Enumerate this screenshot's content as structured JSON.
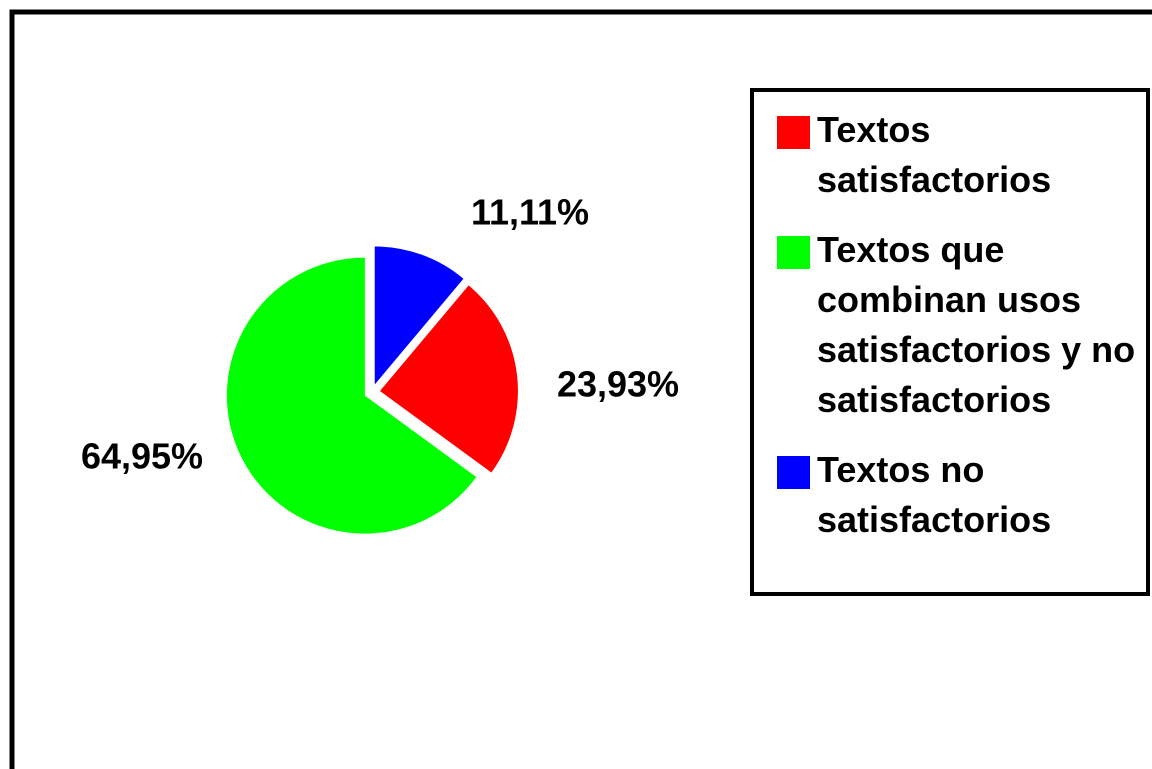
{
  "chart_data": {
    "type": "pie",
    "series": [
      {
        "name": "Textos satisfactorios",
        "color": "#ff0000",
        "values": [
          23.93
        ],
        "value_labels": [
          "23,93%"
        ]
      },
      {
        "name": "Textos que combinan usos satisfactorios y no satisfactorios",
        "color": "#00ff00",
        "values": [
          64.95
        ],
        "value_labels": [
          "64,95%"
        ]
      },
      {
        "name": "Textos no satisfactorios",
        "color": "#0000ff",
        "values": [
          11.11
        ],
        "value_labels": [
          "11,11%"
        ]
      }
    ],
    "legend": "right"
  }
}
